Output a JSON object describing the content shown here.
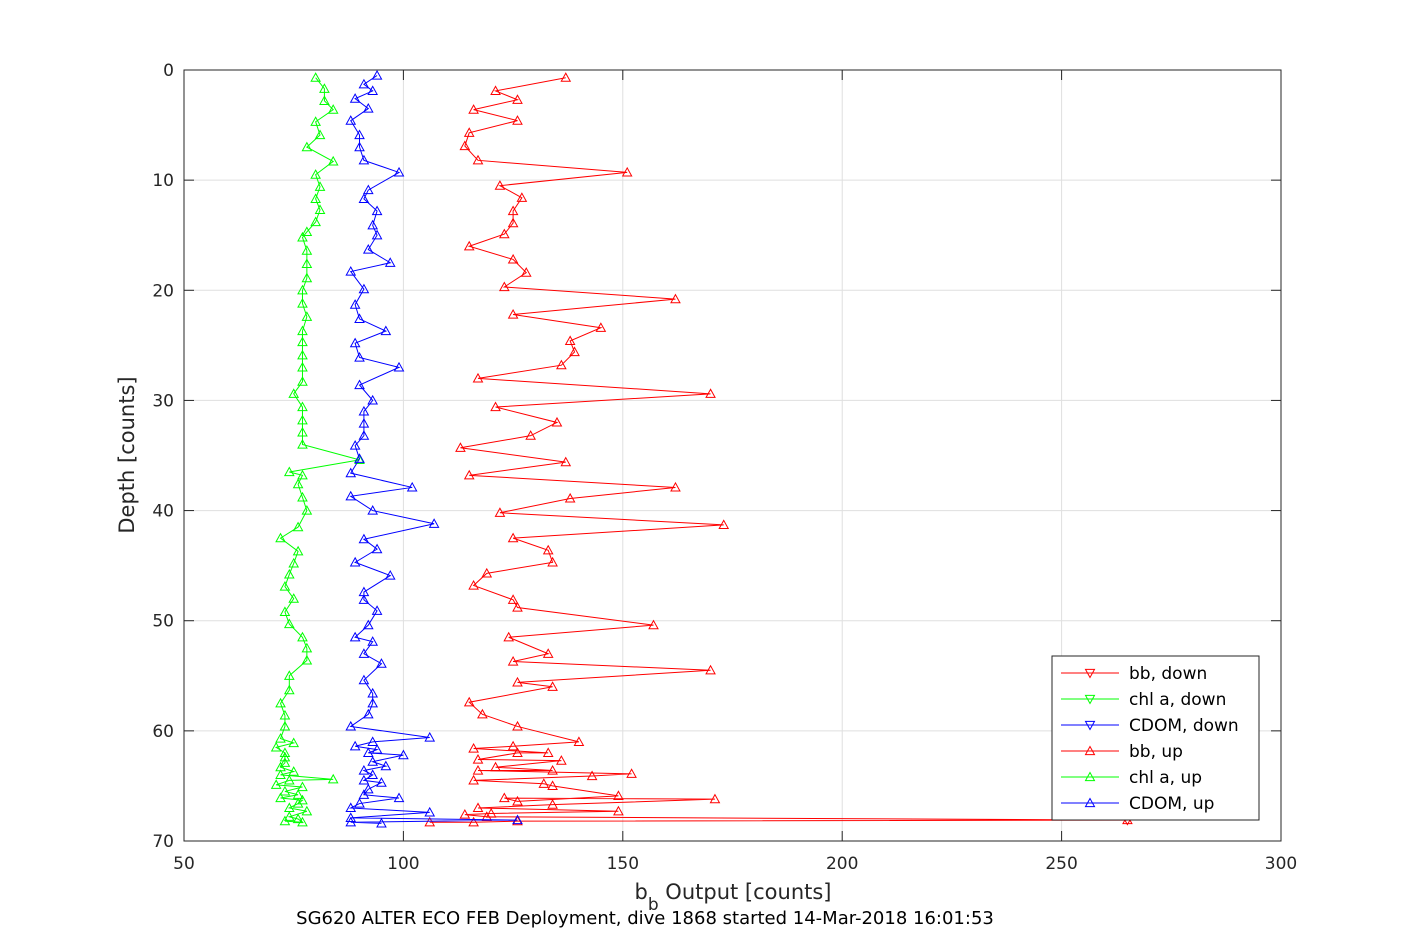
{
  "chart_data": {
    "type": "line",
    "title": "",
    "caption": "SG620 ALTER ECO FEB Deployment, dive 1868 started 14-Mar-2018 16:01:53",
    "xlabel_main": "b",
    "xlabel_sub": "b",
    "xlabel_rest": " Output [counts]",
    "ylabel": "Depth [counts]",
    "xlim": [
      50,
      300
    ],
    "ylim": [
      0,
      70
    ],
    "y_reversed": true,
    "grid": true,
    "legend_position": "bottom-right",
    "x_ticks": [
      "50",
      "100",
      "150",
      "200",
      "250",
      "300"
    ],
    "x_tick_values": [
      50,
      100,
      150,
      200,
      250,
      300
    ],
    "y_ticks": [
      "0",
      "10",
      "20",
      "30",
      "40",
      "50",
      "60",
      "70"
    ],
    "y_tick_values": [
      0,
      10,
      20,
      30,
      40,
      50,
      60,
      70
    ],
    "series": [
      {
        "name": "bb, down",
        "color": "#ff0000",
        "marker": "triangle-down",
        "points": [
          [
            265,
            68.1
          ]
        ]
      },
      {
        "name": "chl a, down",
        "color": "#00ff00",
        "marker": "triangle-down",
        "points": []
      },
      {
        "name": "CDOM, down",
        "color": "#0000ff",
        "marker": "triangle-down",
        "points": []
      },
      {
        "name": "bb, up",
        "color": "#ff0000",
        "marker": "triangle-up",
        "points": [
          [
            106,
            68.3
          ],
          [
            116,
            68.3
          ],
          [
            126,
            68.2
          ],
          [
            265,
            68.1
          ],
          [
            119,
            67.8
          ],
          [
            114,
            67.6
          ],
          [
            120,
            67.5
          ],
          [
            149,
            67.3
          ],
          [
            117,
            67
          ],
          [
            134,
            66.7
          ],
          [
            171,
            66.2
          ],
          [
            123,
            66.1
          ],
          [
            126,
            66.4
          ],
          [
            149,
            65.9
          ],
          [
            134,
            65
          ],
          [
            132,
            64.8
          ],
          [
            116,
            64.5
          ],
          [
            143,
            64.1
          ],
          [
            152,
            63.9
          ],
          [
            117,
            63.6
          ],
          [
            134,
            63.6
          ],
          [
            121,
            63.3
          ],
          [
            136,
            62.7
          ],
          [
            117,
            62.6
          ],
          [
            126,
            62
          ],
          [
            133,
            62
          ],
          [
            116,
            61.6
          ],
          [
            125,
            61.4
          ],
          [
            140,
            61
          ],
          [
            126,
            59.6
          ],
          [
            118,
            58.5
          ],
          [
            115,
            57.4
          ],
          [
            134,
            56
          ],
          [
            126,
            55.6
          ],
          [
            170,
            54.5
          ],
          [
            125,
            53.7
          ],
          [
            133,
            53
          ],
          [
            124,
            51.5
          ],
          [
            157,
            50.4
          ],
          [
            126,
            48.8
          ],
          [
            125,
            48.1
          ],
          [
            116,
            46.8
          ],
          [
            119,
            45.7
          ],
          [
            134,
            44.7
          ],
          [
            133,
            43.6
          ],
          [
            125,
            42.5
          ],
          [
            173,
            41.3
          ],
          [
            122,
            40.2
          ],
          [
            138,
            38.9
          ],
          [
            162,
            37.9
          ],
          [
            115,
            36.8
          ],
          [
            137,
            35.6
          ],
          [
            113,
            34.3
          ],
          [
            129,
            33.2
          ],
          [
            135,
            32
          ],
          [
            121,
            30.6
          ],
          [
            170,
            29.4
          ],
          [
            117,
            28
          ],
          [
            136,
            26.8
          ],
          [
            139,
            25.6
          ],
          [
            138,
            24.6
          ],
          [
            145,
            23.4
          ],
          [
            125,
            22.2
          ],
          [
            162,
            20.8
          ],
          [
            123,
            19.7
          ],
          [
            128,
            18.4
          ],
          [
            125,
            17.2
          ],
          [
            115,
            16
          ],
          [
            123,
            14.9
          ],
          [
            125,
            13.9
          ],
          [
            125,
            12.8
          ],
          [
            127,
            11.6
          ],
          [
            122,
            10.5
          ],
          [
            151,
            9.3
          ],
          [
            117,
            8.2
          ],
          [
            114,
            6.9
          ],
          [
            115,
            5.7
          ],
          [
            126,
            4.6
          ],
          [
            116,
            3.6
          ],
          [
            126,
            2.7
          ],
          [
            121,
            1.9
          ],
          [
            137,
            0.7
          ]
        ]
      },
      {
        "name": "chl a, up",
        "color": "#00ff00",
        "marker": "triangle-up",
        "points": [
          [
            73,
            68.2
          ],
          [
            77,
            68.3
          ],
          [
            76,
            68
          ],
          [
            74,
            67.8
          ],
          [
            78,
            67.3
          ],
          [
            74,
            67
          ],
          [
            76,
            66.6
          ],
          [
            77,
            66.3
          ],
          [
            72,
            66.1
          ],
          [
            76,
            65.8
          ],
          [
            73,
            65.5
          ],
          [
            77,
            65.1
          ],
          [
            71,
            64.9
          ],
          [
            74,
            64.5
          ],
          [
            84,
            64.4
          ],
          [
            72,
            64
          ],
          [
            75,
            63.7
          ],
          [
            72,
            63.3
          ],
          [
            73,
            62.9
          ],
          [
            73,
            62.4
          ],
          [
            73,
            62
          ],
          [
            71,
            61.5
          ],
          [
            75,
            61.1
          ],
          [
            72,
            60.7
          ],
          [
            73,
            59.6
          ],
          [
            73,
            58.6
          ],
          [
            72,
            57.5
          ],
          [
            74,
            56.3
          ],
          [
            74,
            55
          ],
          [
            78,
            53.6
          ],
          [
            78,
            52.5
          ],
          [
            77,
            51.5
          ],
          [
            74,
            50.3
          ],
          [
            73,
            49.2
          ],
          [
            75,
            48
          ],
          [
            73,
            46.9
          ],
          [
            74,
            45.8
          ],
          [
            75,
            44.8
          ],
          [
            76,
            43.7
          ],
          [
            72,
            42.5
          ],
          [
            76,
            41.5
          ],
          [
            78,
            40
          ],
          [
            77,
            38.8
          ],
          [
            76,
            37.6
          ],
          [
            77,
            36.8
          ],
          [
            74,
            36.5
          ],
          [
            90,
            35.4
          ],
          [
            77,
            34
          ],
          [
            77,
            32.9
          ],
          [
            77,
            31.8
          ],
          [
            77,
            30.6
          ],
          [
            75,
            29.4
          ],
          [
            77,
            28.3
          ],
          [
            77,
            27
          ],
          [
            77,
            25.9
          ],
          [
            77,
            24.7
          ],
          [
            77,
            23.7
          ],
          [
            78,
            22.4
          ],
          [
            77,
            21.2
          ],
          [
            77,
            20
          ],
          [
            78,
            18.9
          ],
          [
            78,
            17.6
          ],
          [
            78,
            16.4
          ],
          [
            77,
            15.2
          ],
          [
            78,
            14.7
          ],
          [
            80,
            13.8
          ],
          [
            81,
            12.7
          ],
          [
            80,
            11.7
          ],
          [
            81,
            10.6
          ],
          [
            80,
            9.5
          ],
          [
            84,
            8.3
          ],
          [
            78,
            7
          ],
          [
            81,
            5.9
          ],
          [
            80,
            4.7
          ],
          [
            84,
            3.6
          ],
          [
            82,
            2.8
          ],
          [
            82,
            1.7
          ],
          [
            80,
            0.7
          ]
        ]
      },
      {
        "name": "CDOM, up",
        "color": "#0000ff",
        "marker": "triangle-up",
        "points": [
          [
            95,
            68.4
          ],
          [
            88,
            68.3
          ],
          [
            126,
            68.1
          ],
          [
            88,
            67.9
          ],
          [
            106,
            67.4
          ],
          [
            88,
            67
          ],
          [
            90,
            66.6
          ],
          [
            99,
            66.1
          ],
          [
            91,
            65.8
          ],
          [
            92,
            65.3
          ],
          [
            95,
            64.7
          ],
          [
            91,
            64.5
          ],
          [
            93,
            64
          ],
          [
            91,
            63.6
          ],
          [
            96,
            63.2
          ],
          [
            93,
            62.8
          ],
          [
            100,
            62.2
          ],
          [
            92,
            62
          ],
          [
            94,
            61.7
          ],
          [
            89,
            61.4
          ],
          [
            93,
            61
          ],
          [
            106,
            60.6
          ],
          [
            88,
            59.6
          ],
          [
            92,
            58.5
          ],
          [
            93,
            57.5
          ],
          [
            93,
            56.6
          ],
          [
            91,
            55.4
          ],
          [
            95,
            53.9
          ],
          [
            91,
            53
          ],
          [
            93,
            51.9
          ],
          [
            89,
            51.5
          ],
          [
            92,
            50.4
          ],
          [
            94,
            49.1
          ],
          [
            91,
            48.1
          ],
          [
            91,
            47.4
          ],
          [
            97,
            45.9
          ],
          [
            89,
            44.7
          ],
          [
            94,
            43.5
          ],
          [
            91,
            42.6
          ],
          [
            107,
            41.2
          ],
          [
            93,
            40
          ],
          [
            88,
            38.7
          ],
          [
            102,
            37.9
          ],
          [
            88,
            36.6
          ],
          [
            90,
            35.3
          ],
          [
            89,
            34.1
          ],
          [
            91,
            33.2
          ],
          [
            91,
            32.1
          ],
          [
            91,
            31
          ],
          [
            93,
            30
          ],
          [
            90,
            28.6
          ],
          [
            99,
            27
          ],
          [
            90,
            26.1
          ],
          [
            89,
            24.8
          ],
          [
            96,
            23.7
          ],
          [
            90,
            22.6
          ],
          [
            89,
            21.3
          ],
          [
            91,
            19.9
          ],
          [
            88,
            18.3
          ],
          [
            97,
            17.5
          ],
          [
            92,
            16.3
          ],
          [
            94,
            15
          ],
          [
            93,
            14.1
          ],
          [
            94,
            12.8
          ],
          [
            91,
            11.7
          ],
          [
            92,
            10.9
          ],
          [
            99,
            9.3
          ],
          [
            91,
            8.2
          ],
          [
            90,
            7
          ],
          [
            90,
            5.9
          ],
          [
            88,
            4.6
          ],
          [
            92,
            3.5
          ],
          [
            89,
            2.6
          ],
          [
            93,
            1.9
          ],
          [
            91,
            1.3
          ],
          [
            94,
            0.5
          ]
        ]
      }
    ]
  }
}
